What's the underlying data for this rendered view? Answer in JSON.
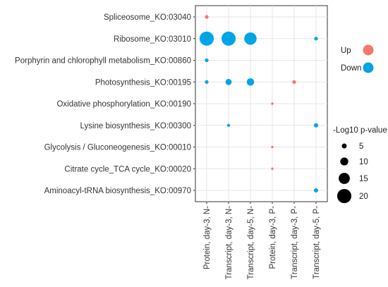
{
  "chart_data": {
    "type": "scatter",
    "title": "",
    "xlabel": "",
    "ylabel": "",
    "grid": true,
    "x_categories": [
      "Protein, day-3, N-",
      "Transcript, day-3, N-",
      "Transcript, day-5, N-",
      "Protein, day-3, P-",
      "Transcript, day-3, P-",
      "Transcript, day-5, P-"
    ],
    "y_categories": [
      "Spliceosome_KO:03040",
      "Ribosome_KO:03010",
      "Porphyrin and chlorophyll metabolism_KO:00860",
      "Photosynthesis_KO:00195",
      "Oxidative phosphorylation_KO:00190",
      "Lysine biosynthesis_KO:00300",
      "Glycolysis / Gluconeogenesis_KO:00010",
      "Citrate cycle_TCA cycle_KO:00020",
      "Aminoacyl-tRNA biosynthesis_KO:00970"
    ],
    "colors": {
      "Up": "#F8766D",
      "Down": "#00A5E6"
    },
    "points": [
      {
        "x": "Protein, day-3, N-",
        "y": "Spliceosome_KO:03040",
        "size": 3,
        "direction": "Up"
      },
      {
        "x": "Protein, day-3, N-",
        "y": "Ribosome_KO:03010",
        "size": 20,
        "direction": "Down"
      },
      {
        "x": "Transcript, day-3, N-",
        "y": "Ribosome_KO:03010",
        "size": 20,
        "direction": "Down"
      },
      {
        "x": "Transcript, day-5, N-",
        "y": "Ribosome_KO:03010",
        "size": 17,
        "direction": "Down"
      },
      {
        "x": "Transcript, day-5, P-",
        "y": "Ribosome_KO:03010",
        "size": 3,
        "direction": "Down"
      },
      {
        "x": "Protein, day-3, N-",
        "y": "Porphyrin and chlorophyll metabolism_KO:00860",
        "size": 3,
        "direction": "Down"
      },
      {
        "x": "Protein, day-3, N-",
        "y": "Photosynthesis_KO:00195",
        "size": 3,
        "direction": "Down"
      },
      {
        "x": "Transcript, day-3, N-",
        "y": "Photosynthesis_KO:00195",
        "size": 7,
        "direction": "Down"
      },
      {
        "x": "Transcript, day-5, N-",
        "y": "Photosynthesis_KO:00195",
        "size": 9,
        "direction": "Down"
      },
      {
        "x": "Transcript, day-3, P-",
        "y": "Photosynthesis_KO:00195",
        "size": 3,
        "direction": "Up"
      },
      {
        "x": "Protein, day-3, P-",
        "y": "Oxidative phosphorylation_KO:00190",
        "size": 1,
        "direction": "Up"
      },
      {
        "x": "Transcript, day-3, N-",
        "y": "Lysine biosynthesis_KO:00300",
        "size": 2,
        "direction": "Down"
      },
      {
        "x": "Transcript, day-5, P-",
        "y": "Lysine biosynthesis_KO:00300",
        "size": 4,
        "direction": "Down"
      },
      {
        "x": "Protein, day-3, P-",
        "y": "Glycolysis / Gluconeogenesis_KO:00010",
        "size": 1,
        "direction": "Up"
      },
      {
        "x": "Protein, day-3, P-",
        "y": "Citrate cycle_TCA cycle_KO:00020",
        "size": 1,
        "direction": "Up"
      },
      {
        "x": "Transcript, day-5, P-",
        "y": "Aminoacyl-tRNA biosynthesis_KO:00970",
        "size": 4,
        "direction": "Down"
      }
    ],
    "legend_color": {
      "placement": "right",
      "items": [
        {
          "label": "Up",
          "color": "#F8766D"
        },
        {
          "label": "Down",
          "color": "#00A5E6"
        }
      ]
    },
    "legend_size": {
      "placement": "right",
      "title": "-Log10 p-value",
      "values": [
        5,
        10,
        15,
        20
      ]
    }
  }
}
